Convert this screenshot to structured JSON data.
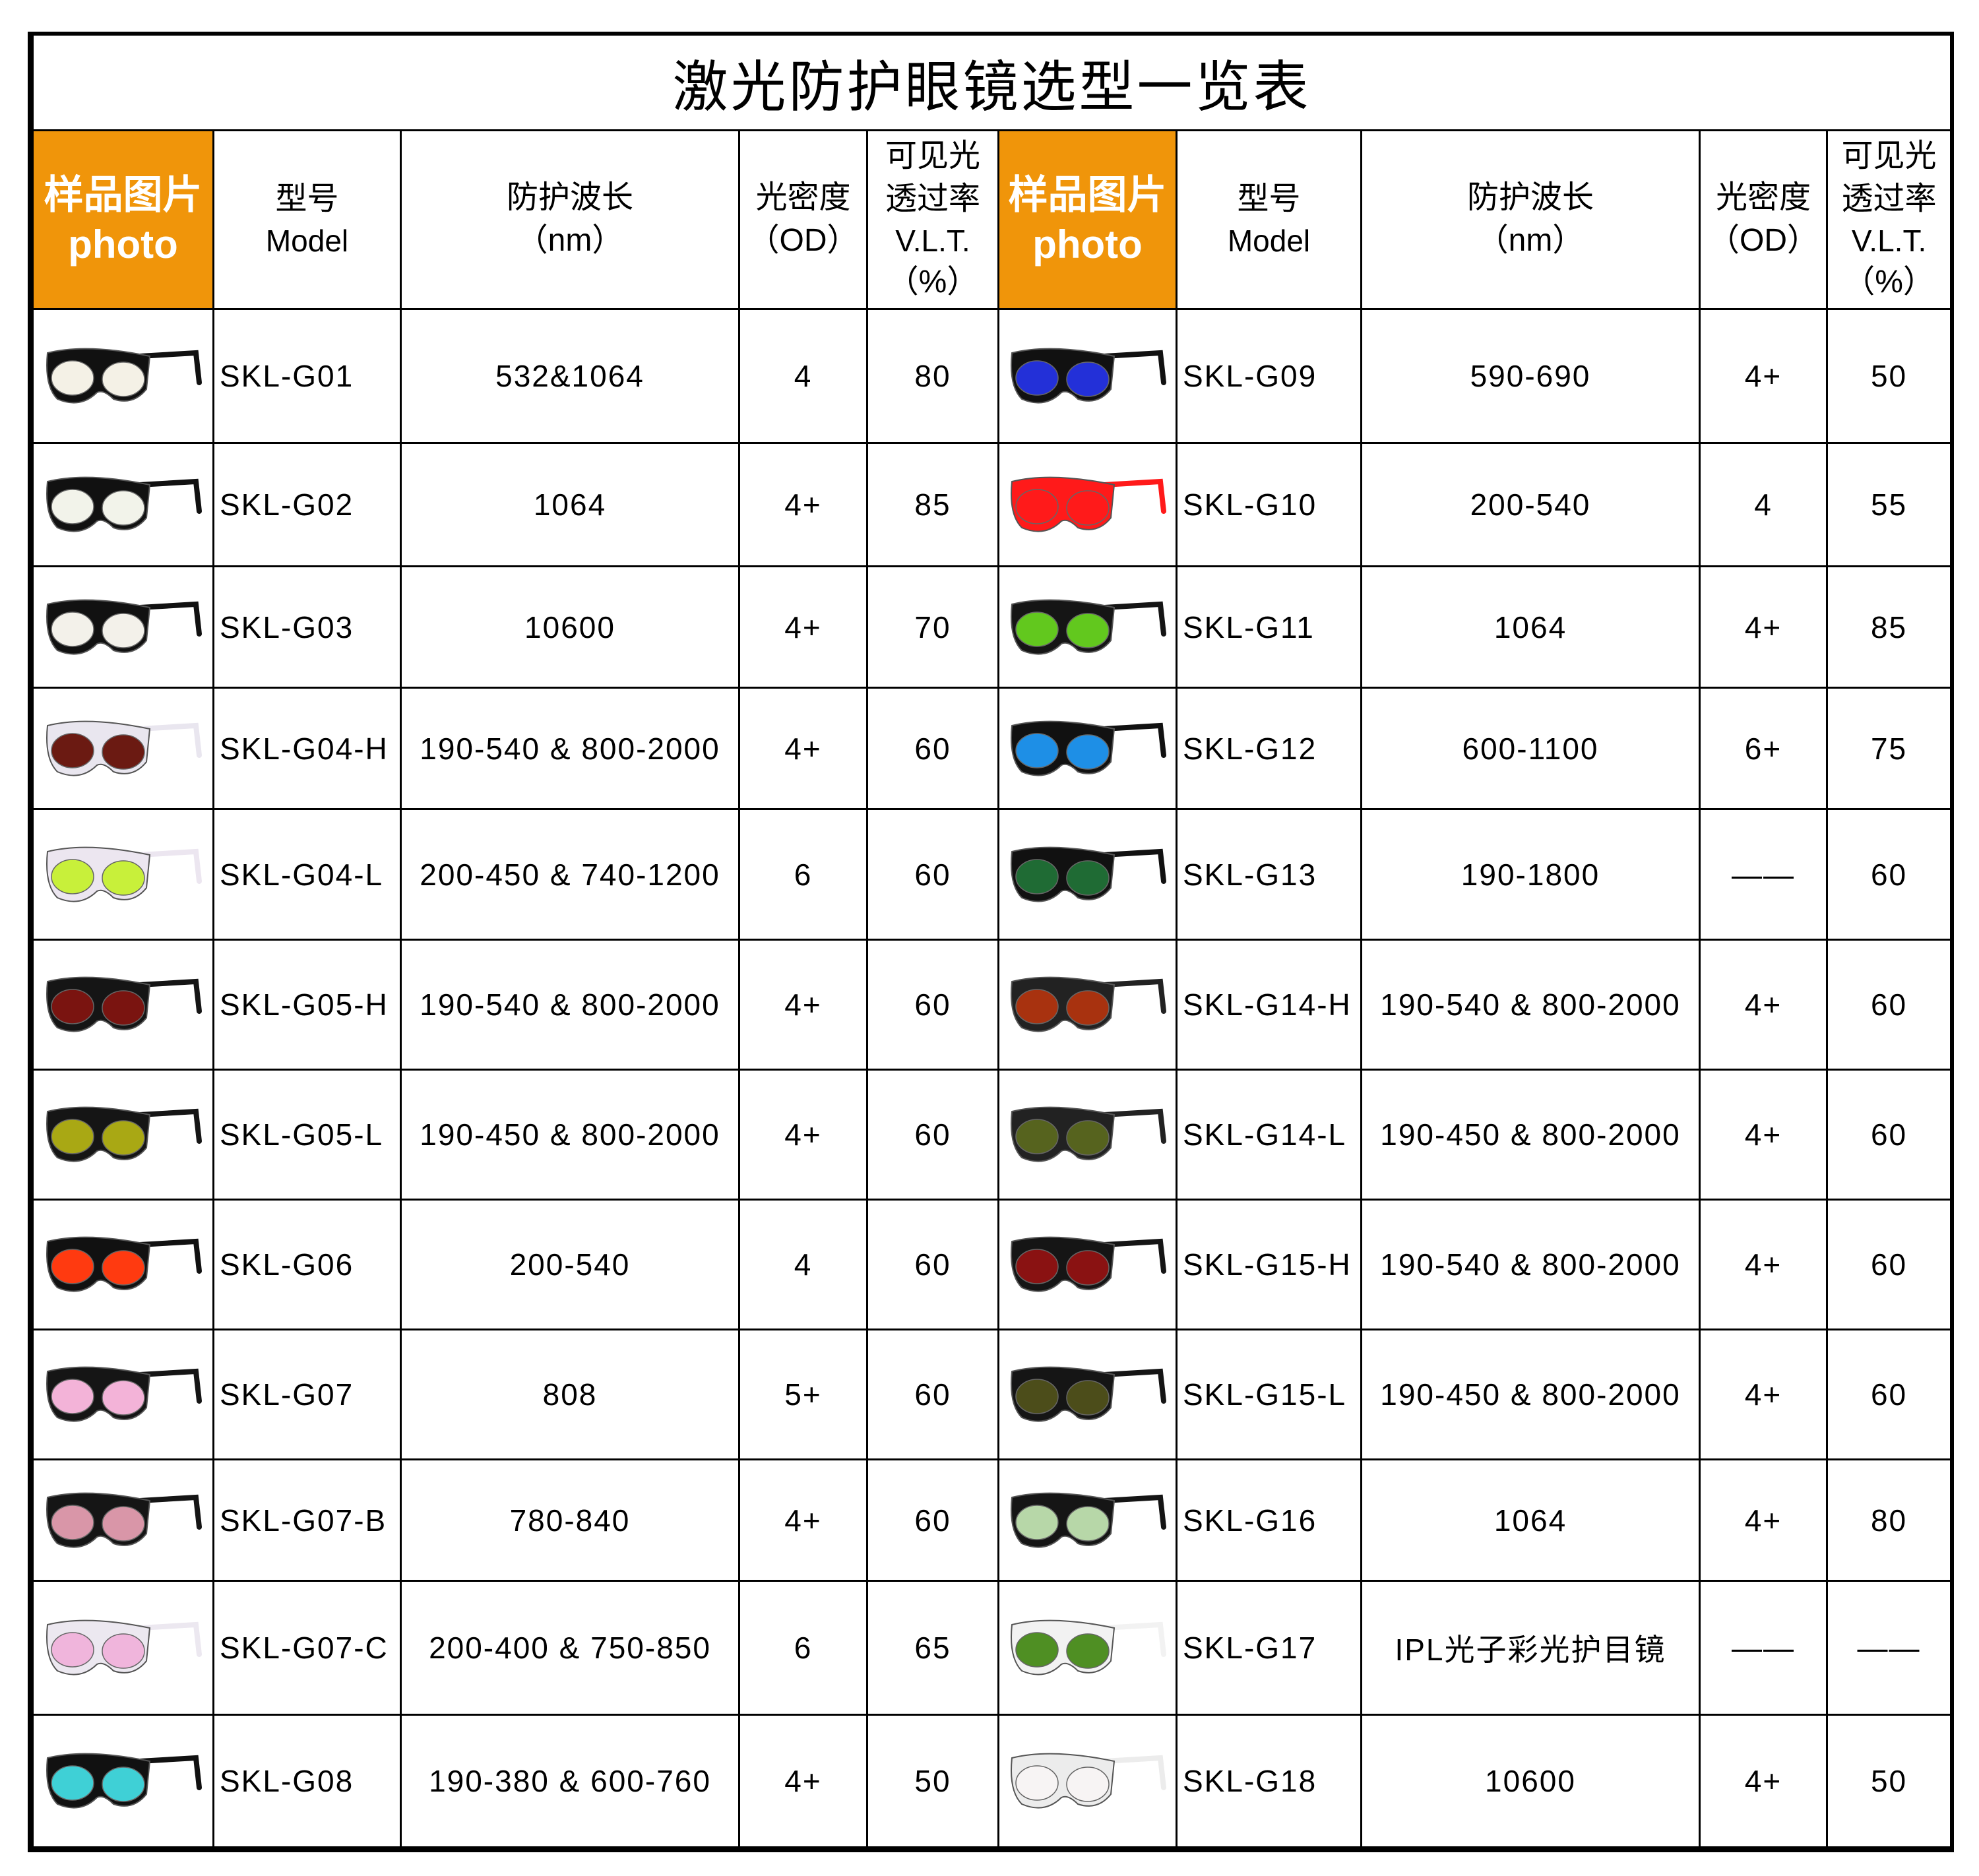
{
  "title": "激光防护眼镜选型一览表",
  "headers": {
    "photo_cn": "样品图片",
    "photo_en": "photo",
    "model_cn": "型号",
    "model_en": "Model",
    "wavelength_cn": "防护波长",
    "wavelength_unit": "（nm）",
    "od_cn": "光密度",
    "od_unit": "（OD）",
    "vlt_cn1": "可见光",
    "vlt_cn2": "透过率",
    "vlt_en": "V.L.T.",
    "vlt_unit": "（%）"
  },
  "colors": {
    "header_photo_bg": "#f0950a"
  },
  "left": [
    {
      "model": "SKL-G01",
      "wavelength": "532&1064",
      "od": "4",
      "vlt": "80",
      "lens": "#f4f1e6",
      "frame": "#111111"
    },
    {
      "model": "SKL-G02",
      "wavelength": "1064",
      "od": "4+",
      "vlt": "85",
      "lens": "#f2f3ea",
      "frame": "#111111"
    },
    {
      "model": "SKL-G03",
      "wavelength": "10600",
      "od": "4+",
      "vlt": "70",
      "lens": "#f3f1ea",
      "frame": "#111111"
    },
    {
      "model": "SKL-G04-H",
      "wavelength": "190-540 & 800-2000",
      "od": "4+",
      "vlt": "60",
      "lens": "#6b1a12",
      "frame": "#e9e6ef"
    },
    {
      "model": "SKL-G04-L",
      "wavelength": "200-450 & 740-1200",
      "od": "6",
      "vlt": "60",
      "lens": "#c8f03a",
      "frame": "#ece6f0"
    },
    {
      "model": "SKL-G05-H",
      "wavelength": "190-540 & 800-2000",
      "od": "4+",
      "vlt": "60",
      "lens": "#7a1410",
      "frame": "#151515"
    },
    {
      "model": "SKL-G05-L",
      "wavelength": "190-450 & 800-2000",
      "od": "4+",
      "vlt": "60",
      "lens": "#a9a814",
      "frame": "#151515"
    },
    {
      "model": "SKL-G06",
      "wavelength": "200-540",
      "od": "4",
      "vlt": "60",
      "lens": "#ff3a10",
      "frame": "#111111"
    },
    {
      "model": "SKL-G07",
      "wavelength": "808",
      "od": "5+",
      "vlt": "60",
      "lens": "#f3b3d8",
      "frame": "#151515"
    },
    {
      "model": "SKL-G07-B",
      "wavelength": "780-840",
      "od": "4+",
      "vlt": "60",
      "lens": "#d996a8",
      "frame": "#151515"
    },
    {
      "model": "SKL-G07-C",
      "wavelength": "200-400 & 750-850",
      "od": "6",
      "vlt": "65",
      "lens": "#f0b5dc",
      "frame": "#ece8f0"
    },
    {
      "model": "SKL-G08",
      "wavelength": "190-380 & 600-760",
      "od": "4+",
      "vlt": "50",
      "lens": "#3fd0d6",
      "frame": "#111111"
    }
  ],
  "right": [
    {
      "model": "SKL-G09",
      "wavelength": "590-690",
      "od": "4+",
      "vlt": "50",
      "lens": "#2330d8",
      "frame": "#111111"
    },
    {
      "model": "SKL-G10",
      "wavelength": "200-540",
      "od": "4",
      "vlt": "55",
      "lens": "#ff1a1a",
      "frame": "#ff1a1a"
    },
    {
      "model": "SKL-G11",
      "wavelength": "1064",
      "od": "4+",
      "vlt": "85",
      "lens": "#62c81e",
      "frame": "#151515"
    },
    {
      "model": "SKL-G12",
      "wavelength": "600-1100",
      "od": "6+",
      "vlt": "75",
      "lens": "#1e8fe6",
      "frame": "#111111"
    },
    {
      "model": "SKL-G13",
      "wavelength": "190-1800",
      "od": "——",
      "vlt": "60",
      "lens": "#1f6b34",
      "frame": "#111111"
    },
    {
      "model": "SKL-G14-H",
      "wavelength": "190-540 & 800-2000",
      "od": "4+",
      "vlt": "60",
      "lens": "#a8320f",
      "frame": "#222222"
    },
    {
      "model": "SKL-G14-L",
      "wavelength": "190-450 & 800-2000",
      "od": "4+",
      "vlt": "60",
      "lens": "#56631e",
      "frame": "#222222"
    },
    {
      "model": "SKL-G15-H",
      "wavelength": "190-540 & 800-2000",
      "od": "4+",
      "vlt": "60",
      "lens": "#8a1212",
      "frame": "#151515"
    },
    {
      "model": "SKL-G15-L",
      "wavelength": "190-450 & 800-2000",
      "od": "4+",
      "vlt": "60",
      "lens": "#4c4d1a",
      "frame": "#151515"
    },
    {
      "model": "SKL-G16",
      "wavelength": "1064",
      "od": "4+",
      "vlt": "80",
      "lens": "#b7d7a8",
      "frame": "#151515"
    },
    {
      "model": "SKL-G17",
      "wavelength": "IPL光子彩光护目镜",
      "od": "——",
      "vlt": "——",
      "lens": "#4f8f23",
      "frame": "#f2f2f2"
    },
    {
      "model": "SKL-G18",
      "wavelength": "10600",
      "od": "4+",
      "vlt": "50",
      "lens": "#f7f4f4",
      "frame": "#ececec"
    }
  ]
}
